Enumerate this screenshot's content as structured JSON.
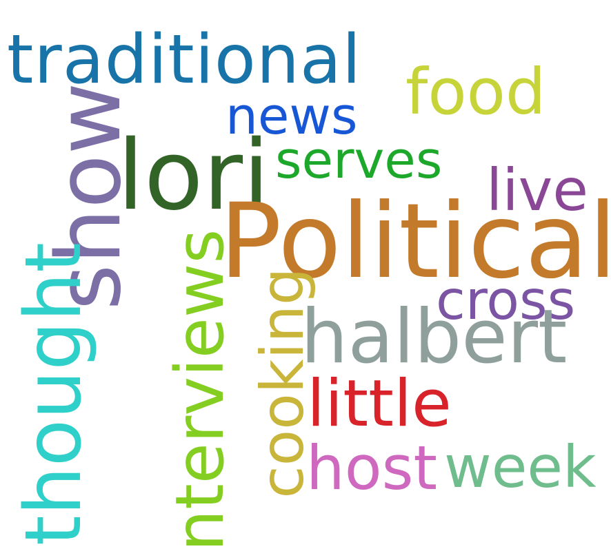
{
  "words": {
    "traditional": "traditional",
    "news": "news",
    "food": "food",
    "show": "show",
    "lori": "lori",
    "serves": "serves",
    "live": "live",
    "political": "Political",
    "cross": "cross",
    "thought": "thought",
    "interviews": "interviews",
    "cooking": "cooking",
    "halbert": "halbert",
    "little": "little",
    "host": "host",
    "week": "week"
  },
  "colors": {
    "traditional": "#1874a8",
    "news": "#1757d6",
    "food": "#c6d43a",
    "show": "#7b6fa6",
    "lori": "#326428",
    "serves": "#1ea82b",
    "live": "#8a4796",
    "political": "#c37a2a",
    "cross": "#7b55a4",
    "thought": "#2ed0c9",
    "interviews": "#84ce22",
    "cooking": "#c8b53a",
    "halbert": "#8fa09c",
    "little": "#d8232b",
    "host": "#cf69bf",
    "week": "#6fbc8d"
  }
}
